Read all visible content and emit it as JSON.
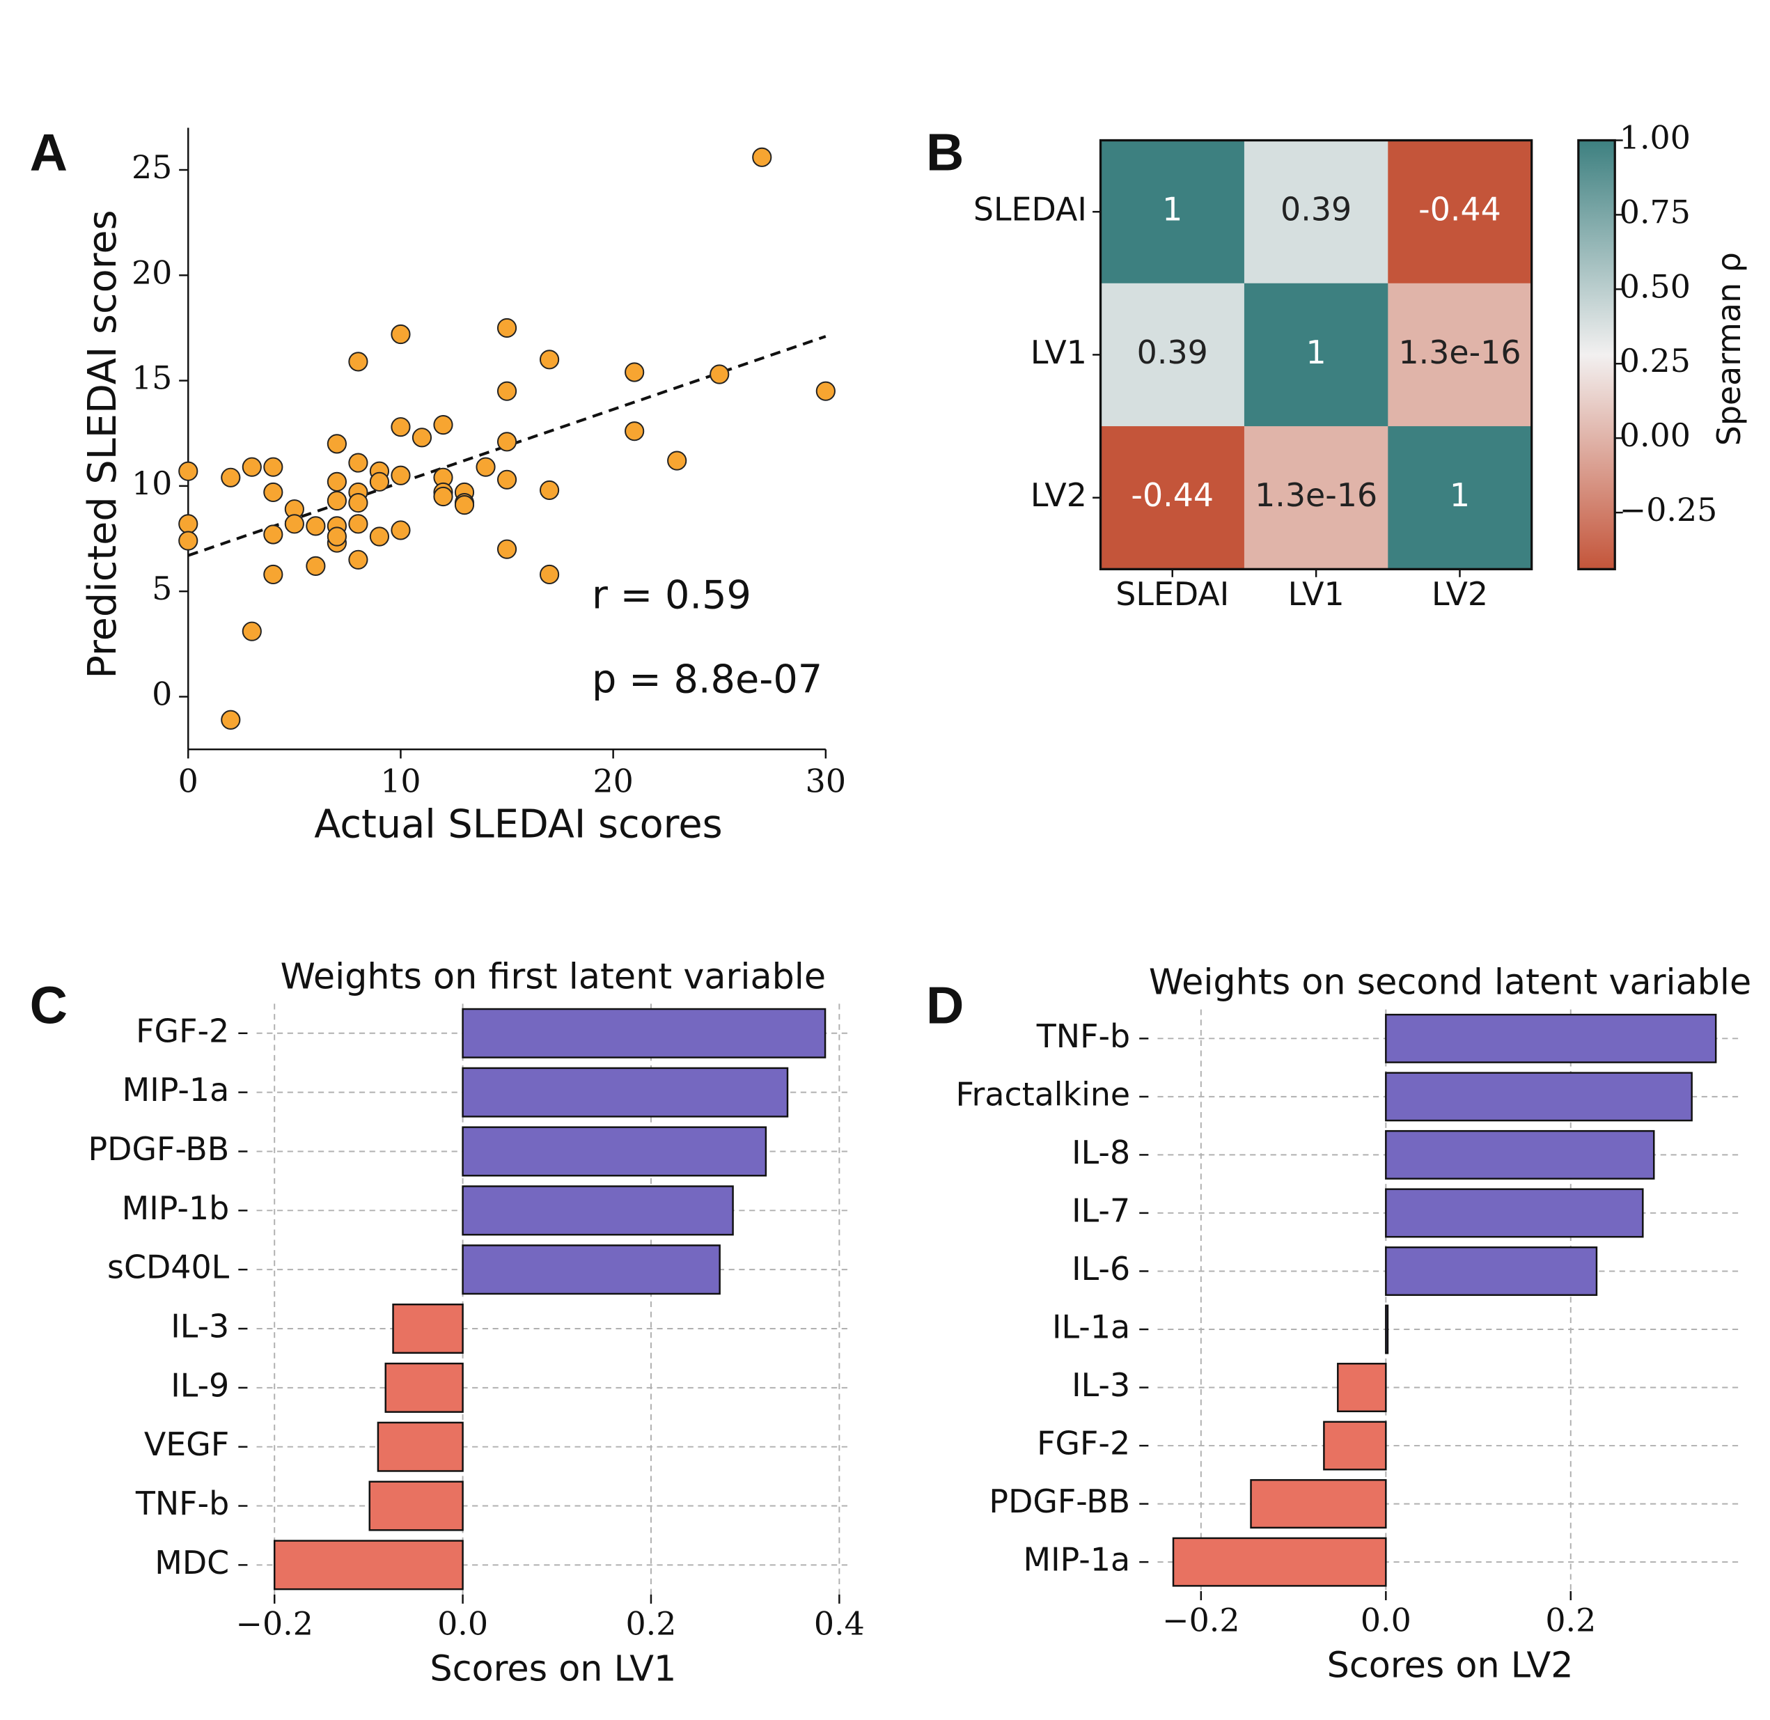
{
  "chart_data": [
    {
      "type": "scatter",
      "panel": "A",
      "xlabel": "Actual SLEDAI scores",
      "ylabel": "Predicted SLEDAI scores",
      "color": "#f7a531",
      "x": [
        0,
        0,
        0,
        2,
        2,
        3,
        3,
        4,
        4,
        4,
        4,
        5,
        5,
        6,
        6,
        7,
        7,
        7,
        7,
        7,
        7,
        8,
        8,
        8,
        8,
        8,
        8,
        9,
        9,
        9,
        10,
        10,
        10,
        10,
        11,
        12,
        12,
        12,
        12,
        13,
        13,
        13,
        14,
        15,
        15,
        15,
        15,
        15,
        17,
        17,
        17,
        21,
        21,
        23,
        25,
        27,
        30
      ],
      "y": [
        10.7,
        8.2,
        7.4,
        10.4,
        -1.1,
        10.9,
        3.1,
        10.9,
        9.7,
        7.7,
        5.8,
        8.9,
        8.2,
        8.1,
        6.2,
        12.0,
        10.2,
        9.3,
        8.1,
        7.3,
        7.6,
        15.9,
        11.1,
        9.7,
        9.2,
        8.2,
        6.5,
        10.7,
        10.2,
        7.6,
        17.2,
        12.8,
        10.5,
        7.9,
        12.3,
        12.9,
        10.4,
        9.7,
        9.5,
        9.7,
        9.2,
        9.1,
        10.9,
        17.5,
        14.5,
        12.1,
        10.3,
        7.0,
        16.0,
        9.8,
        5.8,
        15.4,
        12.6,
        11.2,
        15.3,
        25.6,
        14.5
      ],
      "fit": {
        "x": [
          0,
          30
        ],
        "y": [
          6.7,
          17.1
        ]
      },
      "annotations": [
        "r = 0.59",
        "p = 8.8e-07"
      ],
      "xlim": [
        0,
        30
      ],
      "xticks": [
        0,
        10,
        20,
        30
      ],
      "ylim": [
        -2.5,
        27
      ],
      "yticks": [
        0,
        5,
        10,
        15,
        20,
        25
      ]
    },
    {
      "type": "heatmap",
      "panel": "B",
      "x_categories": [
        "SLEDAI",
        "LV1",
        "LV2"
      ],
      "y_categories": [
        "SLEDAI",
        "LV1",
        "LV2"
      ],
      "values": [
        [
          1,
          0.39,
          -0.44
        ],
        [
          0.39,
          1,
          1.3e-16
        ],
        [
          -0.44,
          1.3e-16,
          1
        ]
      ],
      "clim": [
        -0.44,
        1
      ],
      "cmap": [
        "#c4553a",
        "#f2f0f0",
        "#3d8080"
      ],
      "colorbar_label": "Spearman ρ",
      "colorbar_ticks": [
        {
          "value": 1,
          "label": "1.00"
        },
        {
          "value": 0.75,
          "label": "0.75"
        },
        {
          "value": 0.5,
          "label": "0.50"
        },
        {
          "value": 0.25,
          "label": "0.25"
        },
        {
          "value": 0,
          "label": "0.00"
        },
        {
          "value": -0.25,
          "label": "−0.25"
        }
      ]
    },
    {
      "type": "barh",
      "panel": "C",
      "title": "Weights on first latent variable",
      "xlabel": "Scores on LV1",
      "categories": [
        "FGF-2",
        "MIP-1a",
        "PDGF-BB",
        "MIP-1b",
        "sCD40L",
        "IL-3",
        "IL-9",
        "VEGF",
        "TNF-b",
        "MDC"
      ],
      "values": [
        0.385,
        0.345,
        0.322,
        0.287,
        0.273,
        -0.074,
        -0.082,
        -0.09,
        -0.099,
        -0.2
      ],
      "positive_color": "#7568c0",
      "negative_color": "#e87261",
      "grid": true,
      "xlim": [
        -0.219,
        0.411
      ],
      "xticks": [
        {
          "value": -0.2,
          "label": "−0.2"
        },
        {
          "value": 0,
          "label": "0.0"
        },
        0.2,
        0.4
      ]
    },
    {
      "type": "barh",
      "panel": "D",
      "title": "Weights on second latent variable",
      "xlabel": "Scores on LV2",
      "categories": [
        "TNF-b",
        "Fractalkine",
        "IL-8",
        "IL-7",
        "IL-6",
        "IL-1a",
        "IL-3",
        "FGF-2",
        "PDGF-BB",
        "MIP-1a"
      ],
      "values": [
        0.357,
        0.331,
        0.29,
        0.278,
        0.228,
        0.002,
        -0.052,
        -0.067,
        -0.146,
        -0.23
      ],
      "positive_color": "#7568c0",
      "negative_color": "#e87261",
      "grid": true,
      "xlim": [
        -0.247,
        0.386
      ],
      "xticks": [
        {
          "value": -0.2,
          "label": "−0.2"
        },
        {
          "value": 0,
          "label": "0.0"
        },
        0.2
      ]
    }
  ]
}
